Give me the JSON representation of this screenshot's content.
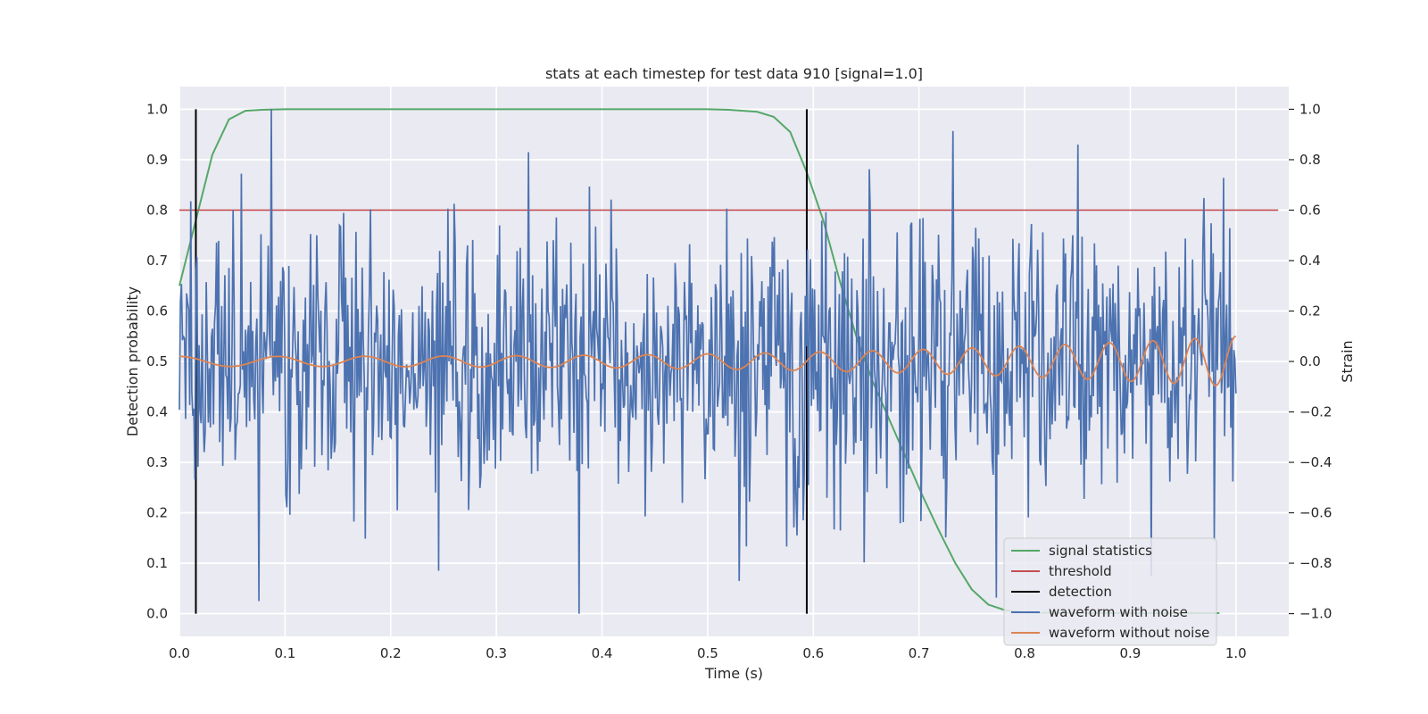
{
  "chart_data": {
    "type": "line",
    "title": "stats at each timestep for test data 910 [signal=1.0]",
    "xlabel": "Time (s)",
    "ylabel_left": "Detection probability",
    "ylabel_right": "Strain",
    "xlim": [
      0.0,
      1.05
    ],
    "ylim_left": [
      -0.045,
      1.045
    ],
    "ylim_right": [
      -1.09,
      1.09
    ],
    "x_ticks": [
      "0.0",
      "0.1",
      "0.2",
      "0.3",
      "0.4",
      "0.5",
      "0.6",
      "0.7",
      "0.8",
      "0.9",
      "1.0"
    ],
    "y_ticks_left": [
      "0.0",
      "0.1",
      "0.2",
      "0.3",
      "0.4",
      "0.5",
      "0.6",
      "0.7",
      "0.8",
      "0.9",
      "1.0"
    ],
    "y_ticks_right": [
      "−1.0",
      "−0.8",
      "−0.6",
      "−0.4",
      "−0.2",
      "0.0",
      "0.2",
      "0.4",
      "0.6",
      "0.8",
      "1.0"
    ],
    "grid": true,
    "legend_position": "lower-right",
    "colors": {
      "signal_statistics": "#55a868",
      "threshold": "#c44e52",
      "detection": "#000000",
      "waveform_with_noise": "#4c72b0",
      "waveform_without_noise": "#dd8452",
      "background": "#eaeaf2",
      "grid": "#ffffff"
    },
    "series": [
      {
        "name": "signal statistics",
        "axis": "left",
        "x": [
          0.0,
          0.0156,
          0.0312,
          0.0469,
          0.0625,
          0.0781,
          0.1,
          0.15,
          0.2,
          0.3,
          0.4,
          0.5,
          0.52,
          0.5469,
          0.5625,
          0.5781,
          0.5938,
          0.6094,
          0.625,
          0.6406,
          0.6563,
          0.6719,
          0.6875,
          0.7031,
          0.7188,
          0.7344,
          0.75,
          0.7656,
          0.7813,
          0.7969,
          0.8125,
          0.85,
          0.9,
          0.95,
          0.9844
        ],
        "y": [
          0.65,
          0.78,
          0.91,
          0.98,
          0.997,
          0.999,
          1.0,
          1.0,
          1.0,
          1.0,
          1.0,
          1.0,
          0.999,
          0.995,
          0.985,
          0.955,
          0.875,
          0.78,
          0.66,
          0.55,
          0.46,
          0.385,
          0.31,
          0.235,
          0.165,
          0.1,
          0.048,
          0.018,
          0.007,
          0.003,
          0.002,
          0.001,
          0.001,
          0.001,
          0.001
        ]
      },
      {
        "name": "threshold",
        "axis": "left",
        "x": [
          0.0,
          1.04
        ],
        "y": [
          0.8,
          0.8
        ]
      },
      {
        "name": "detection",
        "axis": "left",
        "segments": [
          {
            "x": 0.0156,
            "y0": 0.0,
            "y1": 1.0
          },
          {
            "x": 0.5938,
            "y0": 0.0,
            "y1": 1.0
          }
        ]
      },
      {
        "name": "waveform with noise",
        "axis": "right",
        "x_range": [
          0.0,
          1.0
        ],
        "n_points": 1024,
        "std": 0.28,
        "extremes": [
          {
            "x": 0.087,
            "y": 1.0
          },
          {
            "x": 0.33,
            "y": 0.83
          },
          {
            "x": 0.85,
            "y": 0.86
          },
          {
            "x": 0.075,
            "y": -0.95
          },
          {
            "x": 0.378,
            "y": -1.0
          },
          {
            "x": 0.92,
            "y": -0.85
          },
          {
            "x": 0.53,
            "y": -0.87
          },
          {
            "x": 0.245,
            "y": -0.83
          }
        ]
      },
      {
        "name": "waveform without noise",
        "axis": "right",
        "x_range": [
          0.0,
          1.0
        ],
        "amplitude_start": 0.02,
        "amplitude_end": 0.1,
        "frequency_start_hz": 10,
        "frequency_end_hz": 26
      }
    ]
  }
}
